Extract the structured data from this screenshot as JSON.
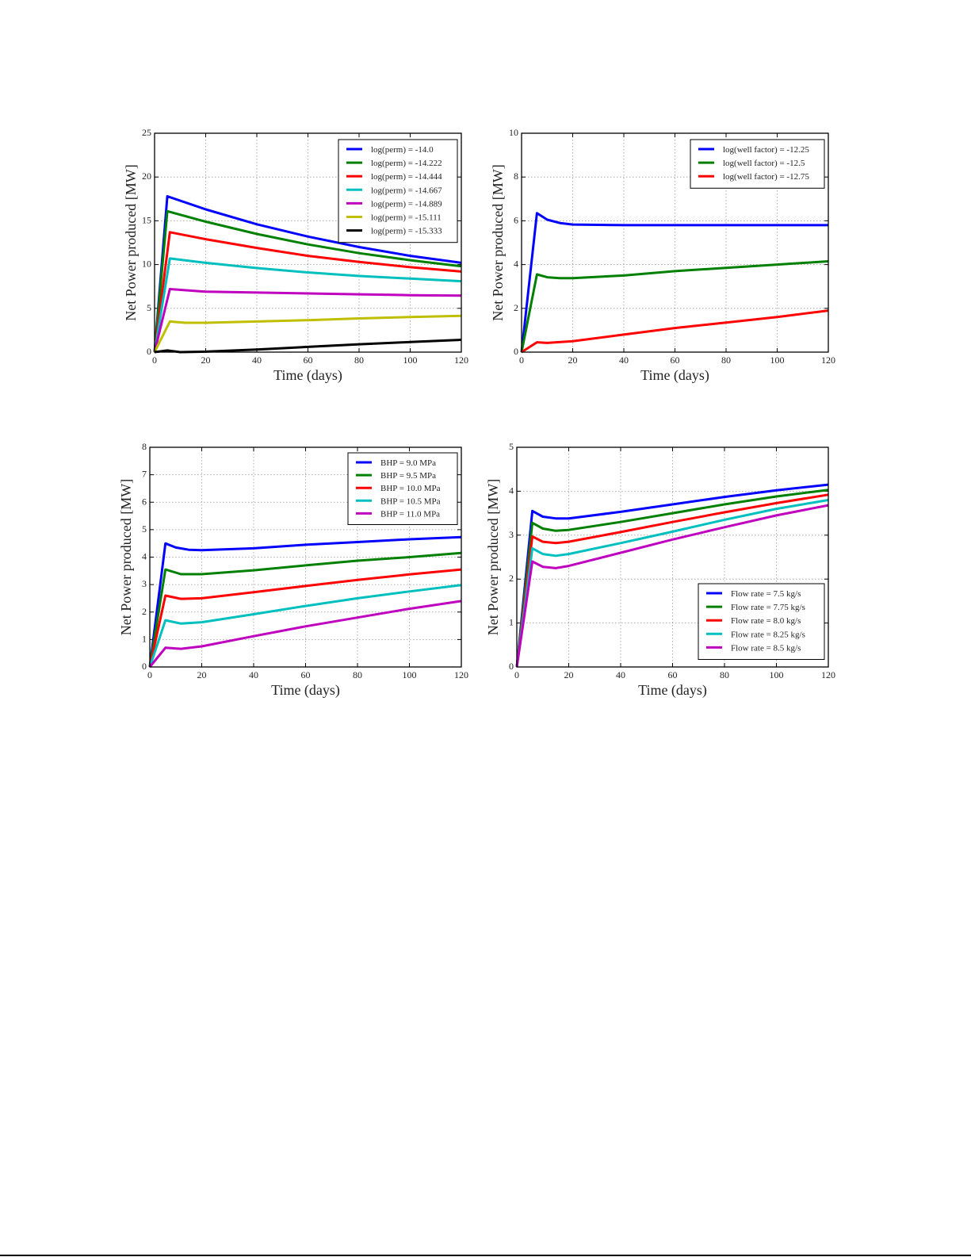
{
  "chart_data": [
    {
      "type": "line",
      "xlabel": "Time (days)",
      "ylabel": "Net Power produced [MW]",
      "xlim": [
        0,
        120
      ],
      "ylim": [
        0,
        25
      ],
      "xticks": [
        0,
        20,
        40,
        60,
        80,
        100,
        120
      ],
      "yticks": [
        0,
        5,
        10,
        15,
        20,
        25
      ],
      "grid": true,
      "legend": "top-right",
      "series": [
        {
          "name": "log(perm) = -14.0",
          "color": "#0000ff",
          "x": [
            0,
            5,
            20,
            40,
            60,
            80,
            100,
            120
          ],
          "y": [
            0,
            17.8,
            16.3,
            14.6,
            13.2,
            12.0,
            11.0,
            10.2
          ]
        },
        {
          "name": "log(perm) = -14.222",
          "color": "#008000",
          "x": [
            0,
            5,
            20,
            40,
            60,
            80,
            100,
            120
          ],
          "y": [
            0,
            16.1,
            14.9,
            13.5,
            12.3,
            11.3,
            10.5,
            9.8
          ]
        },
        {
          "name": "log(perm) = -14.444",
          "color": "#ff0000",
          "x": [
            0,
            6,
            20,
            40,
            60,
            80,
            100,
            120
          ],
          "y": [
            0,
            13.7,
            12.9,
            11.9,
            11.0,
            10.3,
            9.7,
            9.2
          ]
        },
        {
          "name": "log(perm) = -14.667",
          "color": "#00bfbf",
          "x": [
            0,
            6,
            20,
            40,
            60,
            80,
            100,
            120
          ],
          "y": [
            0,
            10.7,
            10.2,
            9.6,
            9.1,
            8.7,
            8.4,
            8.1
          ]
        },
        {
          "name": "log(perm) = -14.889",
          "color": "#bf00bf",
          "x": [
            0,
            6,
            20,
            40,
            60,
            80,
            100,
            120
          ],
          "y": [
            0,
            7.2,
            6.9,
            6.8,
            6.7,
            6.6,
            6.5,
            6.45
          ]
        },
        {
          "name": "log(perm) = -15.111",
          "color": "#bfbf00",
          "x": [
            0,
            6,
            12,
            20,
            40,
            60,
            80,
            100,
            120
          ],
          "y": [
            0,
            3.5,
            3.35,
            3.35,
            3.5,
            3.65,
            3.85,
            4.0,
            4.15
          ]
        },
        {
          "name": "log(perm) = -15.333",
          "color": "#000000",
          "x": [
            0,
            5,
            10,
            20,
            40,
            60,
            80,
            100,
            120
          ],
          "y": [
            0,
            0.2,
            0.0,
            0.05,
            0.3,
            0.6,
            0.9,
            1.15,
            1.4
          ]
        }
      ]
    },
    {
      "type": "line",
      "xlabel": "Time (days)",
      "ylabel": "Net Power produced [MW]",
      "xlim": [
        0,
        120
      ],
      "ylim": [
        0,
        10
      ],
      "xticks": [
        0,
        20,
        40,
        60,
        80,
        100,
        120
      ],
      "yticks": [
        0,
        2,
        4,
        6,
        8,
        10
      ],
      "grid": true,
      "legend": "top-right",
      "series": [
        {
          "name": "log(well factor) = -12.25",
          "color": "#0000ff",
          "x": [
            0,
            6,
            10,
            15,
            20,
            40,
            80,
            120
          ],
          "y": [
            0,
            6.35,
            6.05,
            5.9,
            5.83,
            5.8,
            5.8,
            5.8
          ]
        },
        {
          "name": "log(well factor) = -12.5",
          "color": "#008000",
          "x": [
            0,
            6,
            10,
            15,
            20,
            40,
            60,
            80,
            100,
            120
          ],
          "y": [
            0,
            3.55,
            3.42,
            3.38,
            3.38,
            3.5,
            3.7,
            3.85,
            4.0,
            4.15
          ]
        },
        {
          "name": "log(well factor) = -12.75",
          "color": "#ff0000",
          "x": [
            0,
            6,
            10,
            20,
            40,
            60,
            80,
            100,
            120
          ],
          "y": [
            0,
            0.45,
            0.42,
            0.5,
            0.8,
            1.1,
            1.35,
            1.6,
            1.9
          ]
        }
      ]
    },
    {
      "type": "line",
      "xlabel": "Time (days)",
      "ylabel": "Net Power produced [MW]",
      "xlim": [
        0,
        120
      ],
      "ylim": [
        0,
        8
      ],
      "xticks": [
        0,
        20,
        40,
        60,
        80,
        100,
        120
      ],
      "yticks": [
        0,
        1,
        2,
        3,
        4,
        5,
        6,
        7,
        8
      ],
      "grid": true,
      "legend": "top-right",
      "series": [
        {
          "name": "BHP = 9.0 MPa",
          "color": "#0000ff",
          "x": [
            0,
            6,
            10,
            15,
            20,
            40,
            60,
            80,
            100,
            120
          ],
          "y": [
            0,
            4.5,
            4.35,
            4.27,
            4.25,
            4.32,
            4.45,
            4.55,
            4.65,
            4.73
          ]
        },
        {
          "name": "BHP = 9.5 MPa",
          "color": "#008000",
          "x": [
            0,
            6,
            12,
            20,
            40,
            60,
            80,
            100,
            120
          ],
          "y": [
            0,
            3.55,
            3.38,
            3.38,
            3.52,
            3.7,
            3.87,
            4.0,
            4.15
          ]
        },
        {
          "name": "BHP = 10.0 MPa",
          "color": "#ff0000",
          "x": [
            0,
            6,
            12,
            20,
            40,
            60,
            80,
            100,
            120
          ],
          "y": [
            0,
            2.6,
            2.48,
            2.5,
            2.72,
            2.95,
            3.17,
            3.37,
            3.55
          ]
        },
        {
          "name": "BHP = 10.5 MPa",
          "color": "#00bfbf",
          "x": [
            0,
            6,
            12,
            20,
            40,
            60,
            80,
            100,
            120
          ],
          "y": [
            0,
            1.7,
            1.58,
            1.63,
            1.92,
            2.22,
            2.5,
            2.75,
            2.98
          ]
        },
        {
          "name": "BHP = 11.0 MPa",
          "color": "#bf00bf",
          "x": [
            0,
            6,
            12,
            20,
            40,
            60,
            80,
            100,
            120
          ],
          "y": [
            0,
            0.7,
            0.66,
            0.75,
            1.12,
            1.48,
            1.8,
            2.12,
            2.4
          ]
        }
      ]
    },
    {
      "type": "line",
      "xlabel": "Time (days)",
      "ylabel": "Net Power produced [MW]",
      "xlim": [
        0,
        120
      ],
      "ylim": [
        0,
        5
      ],
      "xticks": [
        0,
        20,
        40,
        60,
        80,
        100,
        120
      ],
      "yticks": [
        0,
        1,
        2,
        3,
        4,
        5
      ],
      "grid": true,
      "legend": "bottom-right",
      "series": [
        {
          "name": "Flow rate = 7.5 kg/s",
          "color": "#0000ff",
          "x": [
            0,
            6,
            10,
            15,
            20,
            40,
            60,
            80,
            100,
            120
          ],
          "y": [
            0,
            3.55,
            3.42,
            3.38,
            3.38,
            3.53,
            3.7,
            3.87,
            4.02,
            4.15
          ]
        },
        {
          "name": "Flow rate = 7.75 kg/s",
          "color": "#008000",
          "x": [
            0,
            6,
            10,
            15,
            20,
            40,
            60,
            80,
            100,
            120
          ],
          "y": [
            0,
            3.28,
            3.15,
            3.1,
            3.12,
            3.3,
            3.5,
            3.7,
            3.88,
            4.03
          ]
        },
        {
          "name": "Flow rate = 8.0 kg/s",
          "color": "#ff0000",
          "x": [
            0,
            6,
            10,
            15,
            20,
            40,
            60,
            80,
            100,
            120
          ],
          "y": [
            0,
            2.97,
            2.85,
            2.82,
            2.85,
            3.07,
            3.3,
            3.52,
            3.73,
            3.92
          ]
        },
        {
          "name": "Flow rate = 8.25 kg/s",
          "color": "#00bfbf",
          "x": [
            0,
            6,
            10,
            15,
            20,
            40,
            60,
            80,
            100,
            120
          ],
          "y": [
            0,
            2.7,
            2.57,
            2.53,
            2.57,
            2.82,
            3.08,
            3.35,
            3.6,
            3.8
          ]
        },
        {
          "name": "Flow rate = 8.5 kg/s",
          "color": "#bf00bf",
          "x": [
            0,
            6,
            10,
            15,
            20,
            40,
            60,
            80,
            100,
            120
          ],
          "y": [
            0,
            2.4,
            2.28,
            2.25,
            2.3,
            2.6,
            2.9,
            3.18,
            3.45,
            3.68
          ]
        }
      ]
    }
  ]
}
